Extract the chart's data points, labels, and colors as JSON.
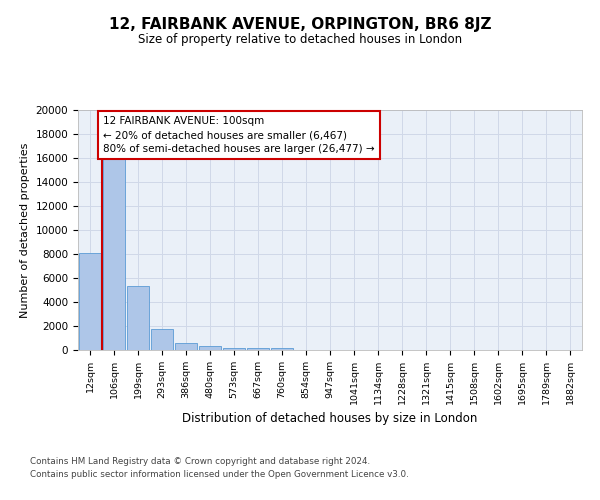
{
  "title": "12, FAIRBANK AVENUE, ORPINGTON, BR6 8JZ",
  "subtitle": "Size of property relative to detached houses in London",
  "xlabel": "Distribution of detached houses by size in London",
  "ylabel": "Number of detached properties",
  "categories": [
    "12sqm",
    "106sqm",
    "199sqm",
    "293sqm",
    "386sqm",
    "480sqm",
    "573sqm",
    "667sqm",
    "760sqm",
    "854sqm",
    "947sqm",
    "1041sqm",
    "1134sqm",
    "1228sqm",
    "1321sqm",
    "1415sqm",
    "1508sqm",
    "1602sqm",
    "1695sqm",
    "1789sqm",
    "1882sqm"
  ],
  "bar_values": [
    8100,
    16600,
    5300,
    1750,
    620,
    340,
    200,
    160,
    130,
    0,
    0,
    0,
    0,
    0,
    0,
    0,
    0,
    0,
    0,
    0,
    0
  ],
  "bar_color": "#aec6e8",
  "bar_edge_color": "#5b9bd5",
  "red_line_color": "#cc0000",
  "annotation_box_color": "#ffffff",
  "annotation_box_edge": "#cc0000",
  "annotation_text_line1": "12 FAIRBANK AVENUE: 100sqm",
  "annotation_text_line2": "← 20% of detached houses are smaller (6,467)",
  "annotation_text_line3": "80% of semi-detached houses are larger (26,477) →",
  "grid_color": "#d0d8e8",
  "background_color": "#eaf0f8",
  "ylim": [
    0,
    20000
  ],
  "yticks": [
    0,
    2000,
    4000,
    6000,
    8000,
    10000,
    12000,
    14000,
    16000,
    18000,
    20000
  ],
  "footer_line1": "Contains HM Land Registry data © Crown copyright and database right 2024.",
  "footer_line2": "Contains public sector information licensed under the Open Government Licence v3.0."
}
